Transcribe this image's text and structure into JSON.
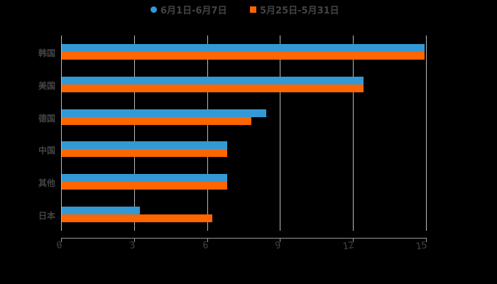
{
  "chart_data": {
    "type": "bar",
    "orientation": "horizontal",
    "title": "",
    "xlabel": "",
    "ylabel": "",
    "categories": [
      "韩国",
      "美国",
      "德国",
      "中国",
      "其他",
      "日本"
    ],
    "series": [
      {
        "name": "6月1日-6月7日",
        "color": "#3399D4",
        "values": [
          14.9,
          12.4,
          8.4,
          6.8,
          6.8,
          3.2
        ]
      },
      {
        "name": "5月25日-5月31日",
        "color": "#FF6600",
        "values": [
          14.9,
          12.4,
          7.8,
          6.8,
          6.8,
          6.2
        ]
      }
    ],
    "xlim": [
      0,
      15
    ],
    "xticks": [
      "0",
      "3",
      "6",
      "9",
      "12",
      "15"
    ],
    "grid": true,
    "legend_position": "top"
  },
  "legend": {
    "items": [
      {
        "label": "6月1日-6月7日",
        "color": "#3399D4",
        "marker": "circle"
      },
      {
        "label": "5月25日-5月31日",
        "color": "#FF6600",
        "marker": "square"
      }
    ]
  }
}
